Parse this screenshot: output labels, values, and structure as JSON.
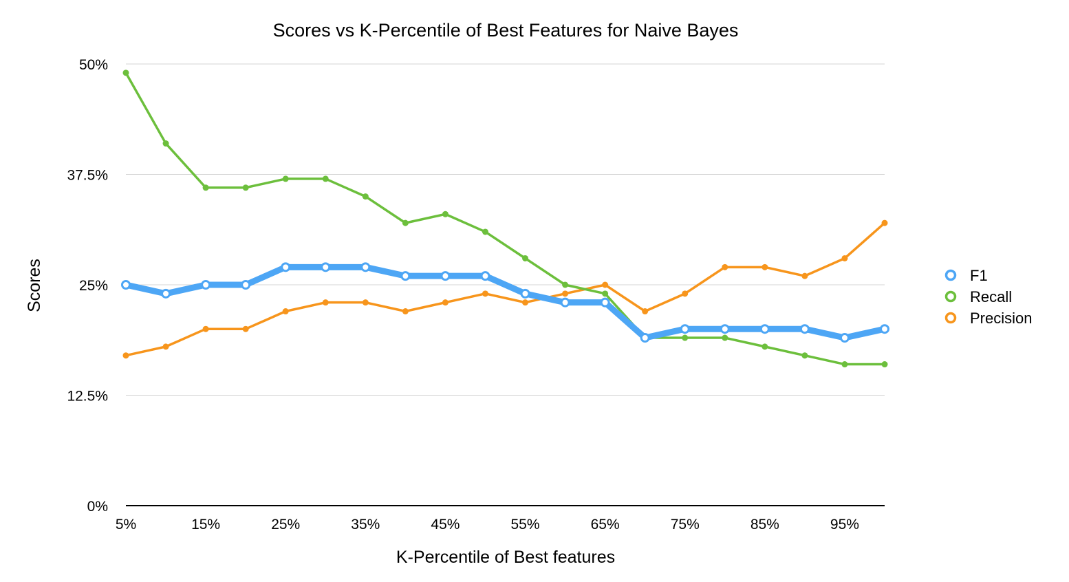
{
  "chart_data": {
    "type": "line",
    "title": "Scores vs K-Percentile of Best Features for Naive Bayes",
    "xlabel": "K-Percentile of Best features",
    "ylabel": "Scores",
    "x": [
      5,
      10,
      15,
      20,
      25,
      30,
      35,
      40,
      45,
      50,
      55,
      60,
      65,
      70,
      75,
      80,
      85,
      90,
      95,
      100
    ],
    "x_tick_labels": [
      "5%",
      "15%",
      "25%",
      "35%",
      "45%",
      "55%",
      "65%",
      "75%",
      "85%",
      "95%"
    ],
    "y_tick_labels": [
      "0%",
      "12.5%",
      "25%",
      "37.5%",
      "50%"
    ],
    "ylim": [
      0,
      50
    ],
    "grid": true,
    "legend_position": "right",
    "series": [
      {
        "name": "F1",
        "color": "#4da6f5",
        "values": [
          25,
          24,
          25,
          25,
          27,
          27,
          27,
          26,
          26,
          26,
          24,
          23,
          23,
          19,
          20,
          20,
          20,
          20,
          19,
          20
        ]
      },
      {
        "name": "Recall",
        "color": "#6cbf3c",
        "values": [
          49,
          41,
          36,
          36,
          37,
          37,
          35,
          32,
          33,
          31,
          28,
          25,
          24,
          19,
          19,
          19,
          18,
          17,
          16,
          16
        ]
      },
      {
        "name": "Precision",
        "color": "#f7951c",
        "values": [
          17,
          18,
          20,
          20,
          22,
          23,
          23,
          22,
          23,
          24,
          23,
          24,
          25,
          22,
          24,
          27,
          27,
          26,
          28,
          32
        ]
      }
    ]
  }
}
